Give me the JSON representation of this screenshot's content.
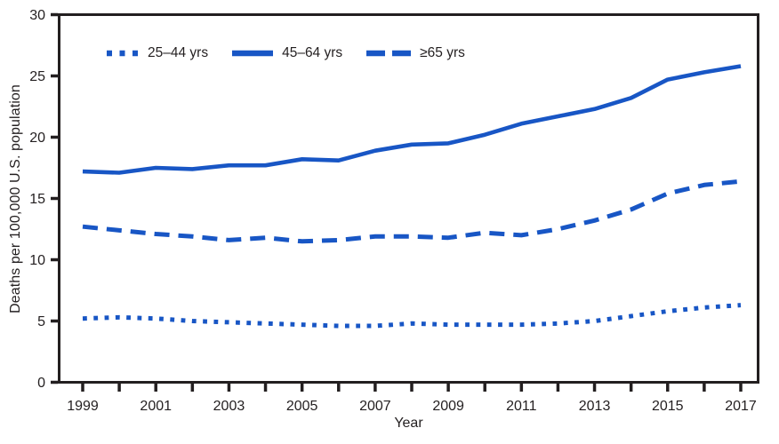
{
  "figure": {
    "kind": "line chart",
    "background": "#ffffff"
  },
  "colors": {
    "line_blue": "#1856C5",
    "axis": "#231f20",
    "text": "#231f20"
  },
  "legend": {
    "items": [
      {
        "label": "25–44 yrs",
        "style": "dotted"
      },
      {
        "label": "45–64 yrs",
        "style": "solid"
      },
      {
        "label": "≥65 yrs",
        "style": "dashed"
      }
    ]
  },
  "chart_data": {
    "type": "line",
    "title": "",
    "xlabel": "Year",
    "ylabel": "Deaths per 100,000 U.S. population",
    "ylim": [
      0,
      30
    ],
    "y_ticks": [
      0,
      5,
      10,
      15,
      20,
      25,
      30
    ],
    "x": [
      1999,
      2000,
      2001,
      2002,
      2003,
      2004,
      2005,
      2006,
      2007,
      2008,
      2009,
      2010,
      2011,
      2012,
      2013,
      2014,
      2015,
      2016,
      2017
    ],
    "x_label_years": [
      1999,
      2001,
      2003,
      2005,
      2007,
      2009,
      2011,
      2013,
      2015,
      2017
    ],
    "grid": false,
    "legend_position": "top-left-inside",
    "series": [
      {
        "name": "25–44 yrs",
        "dash": "dotted",
        "values": [
          5.2,
          5.3,
          5.2,
          5.0,
          4.9,
          4.8,
          4.7,
          4.6,
          4.6,
          4.8,
          4.7,
          4.7,
          4.7,
          4.8,
          5.0,
          5.4,
          5.8,
          6.1,
          6.3
        ]
      },
      {
        "name": "45–64 yrs",
        "dash": "solid",
        "values": [
          17.2,
          17.1,
          17.5,
          17.4,
          17.7,
          17.7,
          18.2,
          18.1,
          18.9,
          19.4,
          19.5,
          20.2,
          21.1,
          21.7,
          22.3,
          23.2,
          24.7,
          25.3,
          25.8
        ]
      },
      {
        "name": "≥65 yrs",
        "dash": "dashed",
        "values": [
          12.7,
          12.4,
          12.1,
          11.9,
          11.6,
          11.8,
          11.5,
          11.6,
          11.9,
          11.9,
          11.8,
          12.2,
          12.0,
          12.5,
          13.2,
          14.1,
          15.4,
          16.1,
          16.4
        ]
      }
    ]
  }
}
